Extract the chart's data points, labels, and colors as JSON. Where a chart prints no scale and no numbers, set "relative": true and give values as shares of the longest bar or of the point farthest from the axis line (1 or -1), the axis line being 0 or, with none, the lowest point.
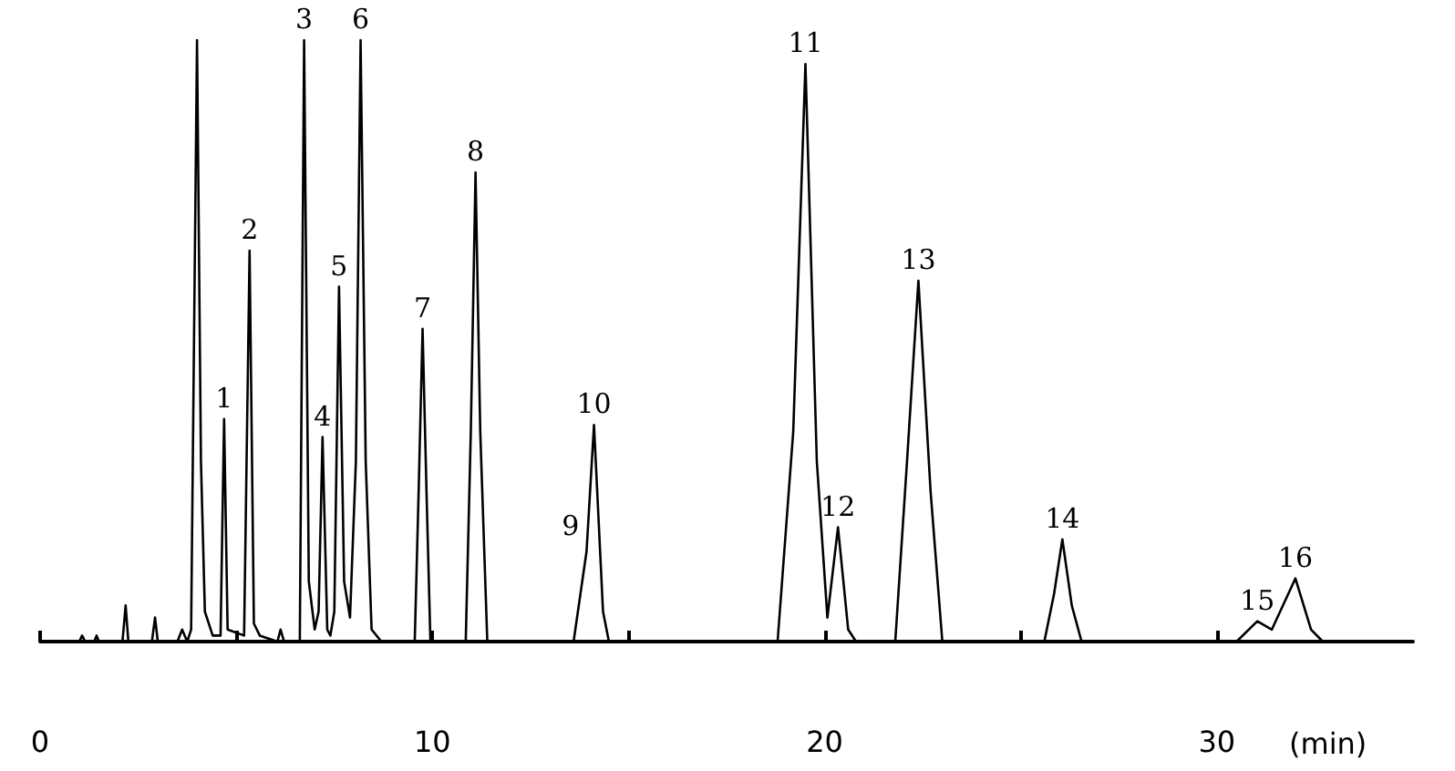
{
  "chart_data": {
    "type": "line",
    "relative": true,
    "xlabel": "(min)",
    "xlim": [
      0,
      35
    ],
    "xticks": [
      0,
      {
        "value": 5,
        "label": null
      },
      10,
      {
        "value": 15,
        "label": null
      },
      20,
      {
        "value": 25,
        "label": null
      },
      30
    ],
    "tick_labels": "x",
    "grid": false,
    "marker": "none",
    "line_style": "solid",
    "series": [
      {
        "color": "#000000",
        "x": [
          0.6,
          1.0,
          1.07,
          1.15,
          1.38,
          1.44,
          1.5,
          2.1,
          2.18,
          2.25,
          2.85,
          2.93,
          3.0,
          3.5,
          3.62,
          3.75,
          3.85,
          3.92,
          4.0,
          4.1,
          4.2,
          4.4,
          4.6,
          4.69,
          4.78,
          5.2,
          5.34,
          5.45,
          5.6,
          6.05,
          6.13,
          6.22,
          6.62,
          6.73,
          6.85,
          7.0,
          7.1,
          7.2,
          7.32,
          7.4,
          7.5,
          7.62,
          7.75,
          7.9,
          8.05,
          8.17,
          8.3,
          8.45,
          8.7,
          9.55,
          9.65,
          9.75,
          9.85,
          9.95,
          10.85,
          10.98,
          11.1,
          11.22,
          11.4,
          13.6,
          13.93,
          14.12,
          14.35,
          14.5,
          18.8,
          19.2,
          19.51,
          19.8,
          20.07,
          20.34,
          20.6,
          20.8,
          21.8,
          22.1,
          22.39,
          22.7,
          23.0,
          25.6,
          25.85,
          26.06,
          26.3,
          26.55,
          30.5,
          31.03,
          31.4,
          32.0,
          32.4,
          32.7,
          34.88
        ],
        "values": [
          0,
          0,
          0.01,
          0,
          0,
          0.01,
          0,
          0,
          0.06,
          0,
          0,
          0.04,
          0,
          0,
          0.02,
          0,
          0.02,
          0.48,
          1,
          0.3,
          0.05,
          0.01,
          0.01,
          0.37,
          0.02,
          0.01,
          0.65,
          0.03,
          0.01,
          0,
          0.02,
          0,
          0,
          1,
          0.1,
          0.02,
          0.05,
          0.34,
          0.02,
          0.01,
          0.05,
          0.59,
          0.1,
          0.04,
          0.3,
          1,
          0.3,
          0.02,
          0,
          0,
          0.25,
          0.52,
          0.25,
          0,
          0,
          0.35,
          0.78,
          0.35,
          0,
          0,
          0.15,
          0.36,
          0.05,
          0,
          0,
          0.35,
          0.96,
          0.3,
          0.04,
          0.19,
          0.02,
          0,
          0,
          0.3,
          0.6,
          0.25,
          0,
          0,
          0.08,
          0.17,
          0.06,
          0,
          0,
          0.034,
          0.02,
          0.105,
          0.02,
          0,
          0
        ]
      }
    ],
    "annotations": [
      {
        "text": "1",
        "x": 4.69,
        "y": 0.37
      },
      {
        "text": "2",
        "x": 5.34,
        "y": 0.65
      },
      {
        "text": "3",
        "x": 6.73,
        "y": 1
      },
      {
        "text": "4",
        "x": 7.2,
        "y": 0.34
      },
      {
        "text": "5",
        "x": 7.62,
        "y": 0.59
      },
      {
        "text": "6",
        "x": 8.17,
        "y": 1
      },
      {
        "text": "7",
        "x": 9.75,
        "y": 0.52
      },
      {
        "text": "8",
        "x": 11.1,
        "y": 0.78
      },
      {
        "text": "9",
        "x": 13.93,
        "y": 0.15
      },
      {
        "text": "10",
        "x": 14.12,
        "y": 0.36
      },
      {
        "text": "11",
        "x": 19.51,
        "y": 0.96
      },
      {
        "text": "12",
        "x": 20.34,
        "y": 0.19
      },
      {
        "text": "13",
        "x": 22.39,
        "y": 0.6
      },
      {
        "text": "14",
        "x": 26.06,
        "y": 0.17
      },
      {
        "text": "15",
        "x": 31.03,
        "y": 0.034
      },
      {
        "text": "16",
        "x": 32.0,
        "y": 0.105
      }
    ]
  }
}
